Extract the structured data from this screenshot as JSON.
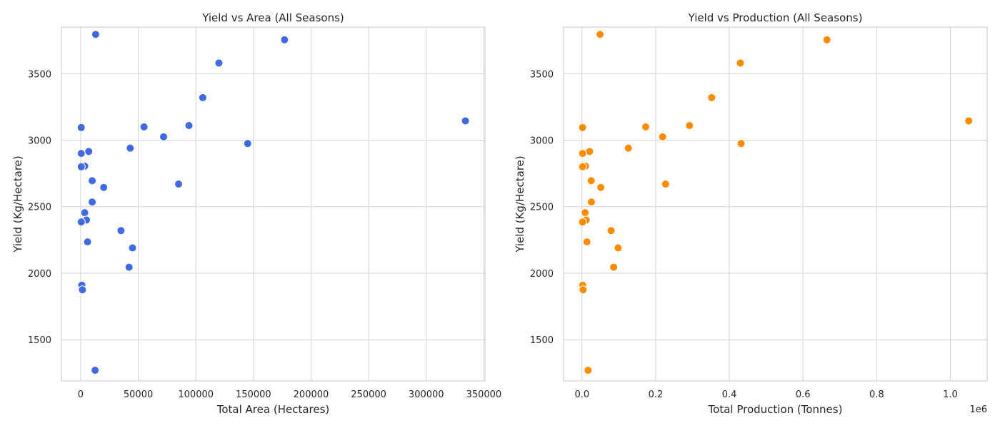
{
  "chart_data": [
    {
      "type": "scatter",
      "title": "Yield vs Area (All Seasons)",
      "xlabel": "Total Area (Hectares)",
      "ylabel": "Yield (Kg/Hectare)",
      "xlim": [
        -16700,
        351000
      ],
      "ylim": [
        1190,
        3850
      ],
      "xticks": [
        0,
        50000,
        100000,
        150000,
        200000,
        250000,
        300000,
        350000
      ],
      "xtick_labels": [
        "0",
        "50000",
        "100000",
        "150000",
        "200000",
        "250000",
        "300000",
        "350000"
      ],
      "yticks": [
        1500,
        2000,
        2500,
        3000,
        3500
      ],
      "ytick_labels": [
        "1500",
        "2000",
        "2500",
        "3000",
        "3500"
      ],
      "grid": true,
      "color": "#4169e1",
      "series": [
        {
          "x": [
            13000,
            177000,
            120000,
            106000,
            334000,
            500,
            94000,
            55000,
            72000,
            145000,
            43000,
            7000,
            500,
            3500,
            500,
            85000,
            10000,
            20000,
            10000,
            3500,
            5000,
            500,
            35000,
            6000,
            45000,
            42000,
            1000,
            1500,
            12500
          ],
          "y": [
            3795,
            3755,
            3580,
            3320,
            3145,
            3095,
            3110,
            3100,
            3025,
            2975,
            2940,
            2915,
            2900,
            2805,
            2800,
            2670,
            2695,
            2645,
            2535,
            2455,
            2400,
            2385,
            2320,
            2235,
            2190,
            2045,
            1910,
            1875,
            1270
          ]
        }
      ]
    },
    {
      "type": "scatter",
      "title": "Yield vs Production (All Seasons)",
      "xlabel": "Total Production (Tonnes)",
      "ylabel": "Yield (Kg/Hectare)",
      "axis_offset_label": "1e6",
      "xlim": [
        -0.05,
        1.1
      ],
      "ylim": [
        1190,
        3850
      ],
      "xticks": [
        0.0,
        0.2,
        0.4,
        0.6,
        0.8,
        1.0
      ],
      "xtick_labels": [
        "0.0",
        "0.2",
        "0.4",
        "0.6",
        "0.8",
        "1.0"
      ],
      "yticks": [
        1500,
        2000,
        2500,
        3000,
        3500
      ],
      "ytick_labels": [
        "1500",
        "2000",
        "2500",
        "3000",
        "3500"
      ],
      "grid": true,
      "color": "#ff8c00",
      "series": [
        {
          "x": [
            0.049,
            0.665,
            0.43,
            0.352,
            1.05,
            0.0015,
            0.292,
            0.173,
            0.219,
            0.432,
            0.126,
            0.0205,
            0.0015,
            0.0095,
            0.0015,
            0.227,
            0.025,
            0.051,
            0.0255,
            0.0085,
            0.0115,
            0.0015,
            0.079,
            0.0135,
            0.098,
            0.086,
            0.002,
            0.003,
            0.0165
          ],
          "y": [
            3795,
            3755,
            3580,
            3320,
            3145,
            3095,
            3110,
            3100,
            3025,
            2975,
            2940,
            2915,
            2900,
            2805,
            2800,
            2670,
            2695,
            2645,
            2535,
            2455,
            2400,
            2385,
            2320,
            2235,
            2190,
            2045,
            1910,
            1875,
            1270
          ]
        }
      ]
    }
  ]
}
